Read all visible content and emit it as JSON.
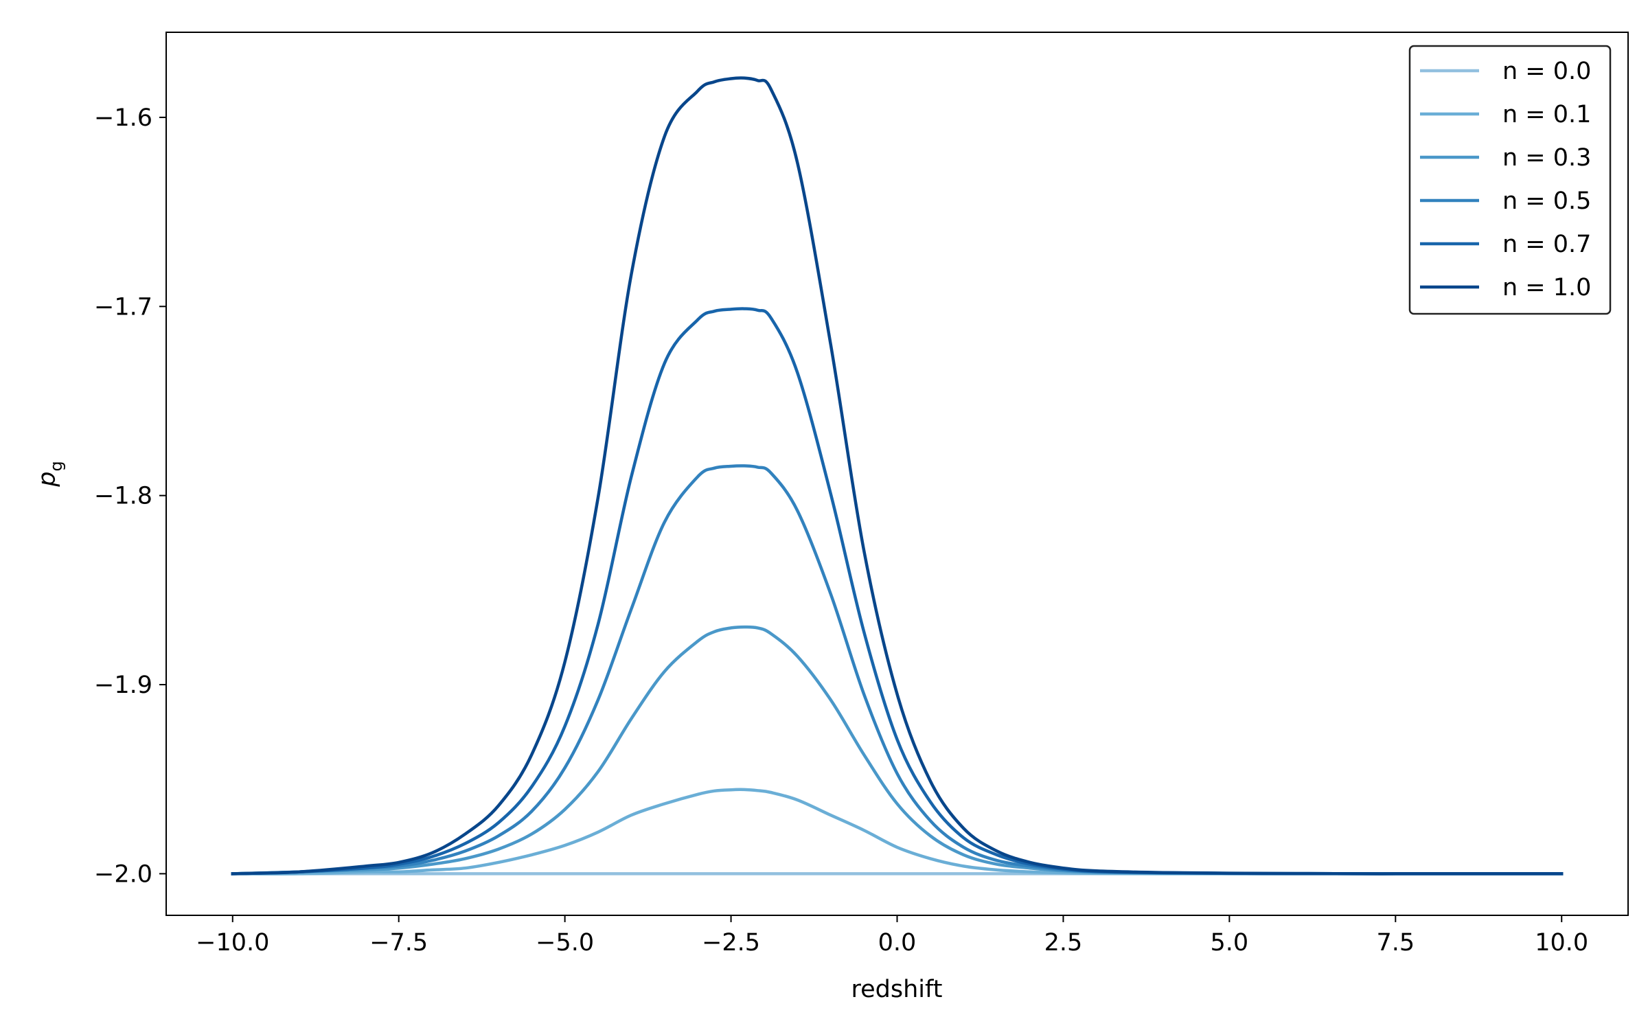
{
  "chart_data": {
    "type": "line",
    "title": "",
    "xlabel": "redshift",
    "ylabel": {
      "main": "p",
      "sub": "g"
    },
    "xlim": [
      -11.0,
      11.0
    ],
    "ylim": [
      -2.022,
      -1.555
    ],
    "xticks": [
      -10.0,
      -7.5,
      -5.0,
      -2.5,
      0.0,
      2.5,
      5.0,
      7.5,
      10.0
    ],
    "xtick_labels": [
      "−10.0",
      "−7.5",
      "−5.0",
      "−2.5",
      "0.0",
      "2.5",
      "5.0",
      "7.5",
      "10.0"
    ],
    "yticks": [
      -2.0,
      -1.9,
      -1.8,
      -1.7,
      -1.6
    ],
    "ytick_labels": [
      "−2.0",
      "−1.9",
      "−1.8",
      "−1.7",
      "−1.6"
    ],
    "grid": false,
    "legend_position": "top-right",
    "x": [
      -10,
      -9,
      -8,
      -7.5,
      -7,
      -6.5,
      -6,
      -5.5,
      -5,
      -4.5,
      -4,
      -3.5,
      -3,
      -2.75,
      -2.5,
      -2.3,
      -2.1,
      -1.9,
      -1.5,
      -1,
      -0.5,
      0,
      0.5,
      1,
      1.5,
      2,
      2.5,
      3,
      4,
      5,
      6,
      7,
      8,
      10
    ],
    "series": [
      {
        "name": "n = 0.0",
        "color": "#92c0df",
        "values": [
          -2.0,
          -2.0,
          -2.0,
          -2.0,
          -2.0,
          -2.0,
          -2.0,
          -2.0,
          -2.0,
          -2.0,
          -2.0,
          -2.0,
          -2.0,
          -2.0,
          -2.0,
          -2.0,
          -2.0,
          -2.0,
          -2.0,
          -2.0,
          -2.0,
          -2.0,
          -2.0,
          -2.0,
          -2.0,
          -2.0,
          -2.0,
          -2.0,
          -2.0,
          -2.0,
          -2.0,
          -2.0,
          -2.0,
          -2.0
        ]
      },
      {
        "name": "n = 0.1",
        "color": "#6aaed6",
        "values": [
          -2.0,
          -2.0,
          -1.999,
          -1.999,
          -1.998,
          -1.997,
          -1.994,
          -1.99,
          -1.985,
          -1.978,
          -1.969,
          -1.963,
          -1.958,
          -1.9562,
          -1.9556,
          -1.9555,
          -1.956,
          -1.957,
          -1.961,
          -1.969,
          -1.977,
          -1.986,
          -1.992,
          -1.996,
          -1.998,
          -1.999,
          -1.9995,
          -1.9998,
          -2.0,
          -2.0,
          -2.0,
          -2.0,
          -2.0,
          -2.0
        ]
      },
      {
        "name": "n = 0.3",
        "color": "#4a98c9",
        "values": [
          -2.0,
          -1.999,
          -1.998,
          -1.997,
          -1.995,
          -1.992,
          -1.987,
          -1.979,
          -1.966,
          -1.946,
          -1.918,
          -1.893,
          -1.877,
          -1.872,
          -1.87,
          -1.8695,
          -1.87,
          -1.873,
          -1.885,
          -1.908,
          -1.937,
          -1.963,
          -1.98,
          -1.99,
          -1.995,
          -1.997,
          -1.9985,
          -1.9992,
          -1.9997,
          -1.9999,
          -2.0,
          -2.0,
          -2.0,
          -2.0
        ]
      },
      {
        "name": "n = 0.5",
        "color": "#3282be",
        "values": [
          -2.0,
          -1.999,
          -1.997,
          -1.996,
          -1.993,
          -1.988,
          -1.98,
          -1.967,
          -1.944,
          -1.908,
          -1.86,
          -1.814,
          -1.79,
          -1.7855,
          -1.7845,
          -1.7843,
          -1.785,
          -1.788,
          -1.808,
          -1.852,
          -1.905,
          -1.947,
          -1.972,
          -1.986,
          -1.993,
          -1.996,
          -1.998,
          -1.999,
          -1.9995,
          -1.9998,
          -1.9999,
          -2.0,
          -2.0,
          -2.0
        ]
      },
      {
        "name": "n = 0.7",
        "color": "#1865ab",
        "values": [
          -2.0,
          -1.999,
          -1.997,
          -1.995,
          -1.991,
          -1.984,
          -1.973,
          -1.954,
          -1.922,
          -1.868,
          -1.79,
          -1.73,
          -1.707,
          -1.7025,
          -1.7015,
          -1.7012,
          -1.702,
          -1.706,
          -1.735,
          -1.799,
          -1.872,
          -1.929,
          -1.962,
          -1.981,
          -1.99,
          -1.995,
          -1.9975,
          -1.9988,
          -1.9995,
          -1.9998,
          -1.9999,
          -2.0,
          -2.0,
          -2.0
        ]
      },
      {
        "name": "n = 1.0",
        "color": "#08468b",
        "values": [
          -2.0,
          -1.999,
          -1.996,
          -1.994,
          -1.989,
          -1.979,
          -1.964,
          -1.937,
          -1.888,
          -1.801,
          -1.683,
          -1.61,
          -1.586,
          -1.5812,
          -1.5795,
          -1.5792,
          -1.5805,
          -1.585,
          -1.624,
          -1.72,
          -1.829,
          -1.905,
          -1.951,
          -1.976,
          -1.988,
          -1.994,
          -1.997,
          -1.9985,
          -1.9994,
          -1.9997,
          -1.9999,
          -2.0,
          -2.0,
          -2.0
        ]
      }
    ]
  }
}
